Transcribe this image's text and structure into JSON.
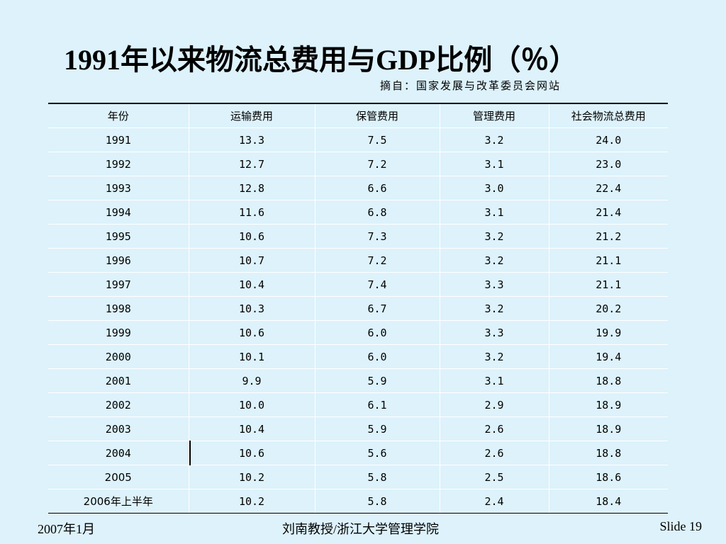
{
  "slide": {
    "title": "1991年以来物流总费用与GDP比例（％）",
    "source": "摘自：国家发展与改革委员会网站"
  },
  "table": {
    "headers": [
      "年份",
      "运输费用",
      "保管费用",
      "管理费用",
      "社会物流总费用"
    ],
    "rows": [
      [
        "1991",
        "13.3",
        "7.5",
        "3.2",
        "24.0"
      ],
      [
        "1992",
        "12.7",
        "7.2",
        "3.1",
        "23.0"
      ],
      [
        "1993",
        "12.8",
        "6.6",
        "3.0",
        "22.4"
      ],
      [
        "1994",
        "11.6",
        "6.8",
        "3.1",
        "21.4"
      ],
      [
        "1995",
        "10.6",
        "7.3",
        "3.2",
        "21.2"
      ],
      [
        "1996",
        "10.7",
        "7.2",
        "3.2",
        "21.1"
      ],
      [
        "1997",
        "10.4",
        "7.4",
        "3.3",
        "21.1"
      ],
      [
        "1998",
        "10.3",
        "6.7",
        "3.2",
        "20.2"
      ],
      [
        "1999",
        "10.6",
        "6.0",
        "3.3",
        "19.9"
      ],
      [
        "2000",
        "10.1",
        "6.0",
        "3.2",
        "19.4"
      ],
      [
        "2001",
        "9.9",
        "5.9",
        "3.1",
        "18.8"
      ],
      [
        "2002",
        "10.0",
        "6.1",
        "2.9",
        "18.9"
      ],
      [
        "2003",
        "10.4",
        "5.9",
        "2.6",
        "18.9"
      ],
      [
        "2004",
        "10.6",
        "5.6",
        "2.6",
        "18.8"
      ],
      [
        "2005",
        "10.2",
        "5.8",
        "2.5",
        "18.6"
      ],
      [
        "2006年上半年",
        "10.2",
        "5.8",
        "2.4",
        "18.4"
      ]
    ]
  },
  "footer": {
    "date": "2007年1月",
    "author": "刘南教授/浙江大学管理学院",
    "slide_number": "Slide 19"
  }
}
